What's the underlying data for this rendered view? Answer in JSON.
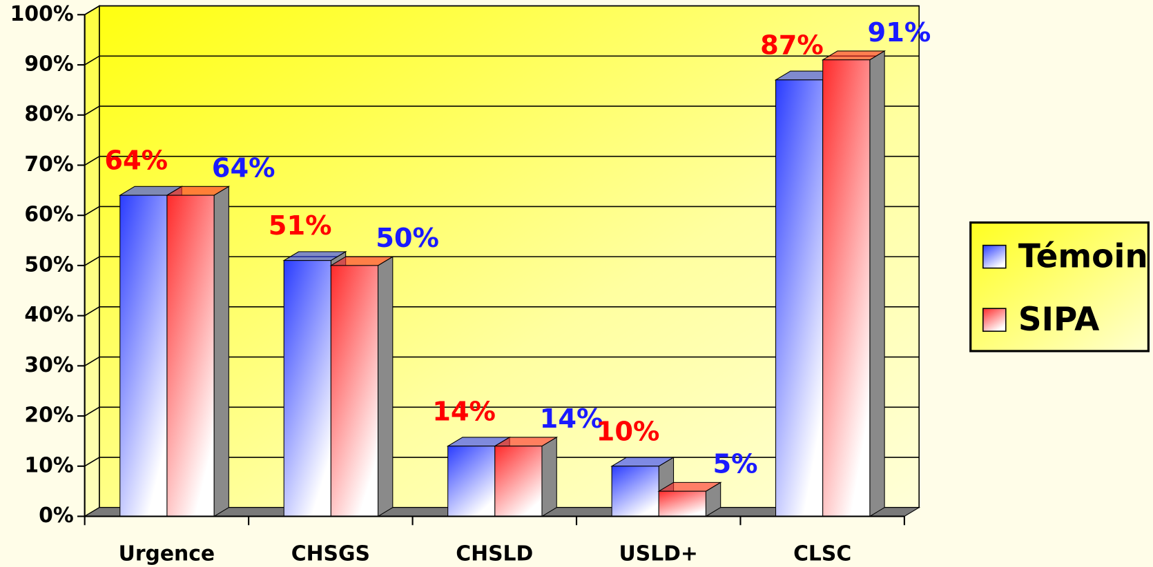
{
  "chart_data": {
    "type": "bar3d",
    "categories": [
      "Urgence",
      "CHSGS",
      "CHSLD",
      "USLD+",
      "CLSC"
    ],
    "series": [
      {
        "name": "Témoin",
        "color": "#2a3cff",
        "label_color": "#ff0000",
        "values": [
          64,
          51,
          14,
          10,
          87
        ],
        "value_labels": [
          "64%",
          "51%",
          "14%",
          "10%",
          "87%"
        ]
      },
      {
        "name": "SIPA",
        "color": "#ff2a2a",
        "label_color": "#1a1aff",
        "values": [
          64,
          50,
          14,
          5,
          91
        ],
        "value_labels": [
          "64%",
          "50%",
          "14%",
          "5%",
          "91%"
        ]
      }
    ],
    "ylim": [
      0,
      100
    ],
    "yticks": [
      {
        "value": 0,
        "label": "0%"
      },
      {
        "value": 10,
        "label": "10%"
      },
      {
        "value": 20,
        "label": "20%"
      },
      {
        "value": 30,
        "label": "30%"
      },
      {
        "value": 40,
        "label": "40%"
      },
      {
        "value": 50,
        "label": "50%"
      },
      {
        "value": 60,
        "label": "60%"
      },
      {
        "value": 70,
        "label": "70%"
      },
      {
        "value": 80,
        "label": "80%"
      },
      {
        "value": 90,
        "label": "90%"
      },
      {
        "value": 100,
        "label": "100%"
      }
    ],
    "grid": true,
    "legend": "right"
  }
}
